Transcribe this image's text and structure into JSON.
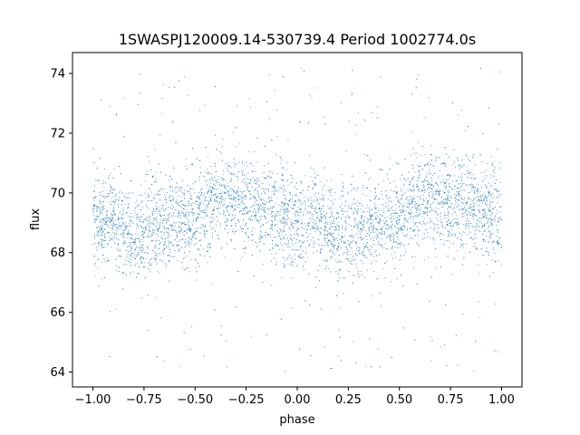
{
  "chart_data": {
    "type": "scatter",
    "title": "1SWASPJ120009.14-530739.4 Period 1002774.0s",
    "xlabel": "phase",
    "ylabel": "flux",
    "xlim": [
      -1.1,
      1.1
    ],
    "ylim": [
      63.5,
      74.7
    ],
    "xticks": [
      -1.0,
      -0.75,
      -0.5,
      -0.25,
      0.0,
      0.25,
      0.5,
      0.75,
      1.0
    ],
    "xtick_labels": [
      "−1.00",
      "−0.75",
      "−0.50",
      "−0.25",
      "0.00",
      "0.25",
      "0.50",
      "0.75",
      "1.00"
    ],
    "yticks": [
      64,
      66,
      68,
      70,
      72,
      74
    ],
    "ytick_labels": [
      "64",
      "66",
      "68",
      "70",
      "72",
      "74"
    ],
    "grid": false,
    "marker_color": "#1f77b4",
    "series": [
      {
        "phase_range": [
          -1.0,
          1.0
        ],
        "mean_flux": 69.0,
        "core_band": [
          67.5,
          70.5
        ],
        "outlier_range": [
          64.0,
          74.2
        ],
        "profile": [
          {
            "x": -1.0,
            "y": 68.9
          },
          {
            "x": -0.9,
            "y": 69.2
          },
          {
            "x": -0.8,
            "y": 68.5
          },
          {
            "x": -0.7,
            "y": 68.9
          },
          {
            "x": -0.6,
            "y": 69.1
          },
          {
            "x": -0.5,
            "y": 69.0
          },
          {
            "x": -0.4,
            "y": 69.9
          },
          {
            "x": -0.3,
            "y": 69.7
          },
          {
            "x": -0.2,
            "y": 69.6
          },
          {
            "x": -0.1,
            "y": 69.4
          },
          {
            "x": 0.0,
            "y": 68.9
          },
          {
            "x": 0.1,
            "y": 69.2
          },
          {
            "x": 0.2,
            "y": 68.5
          },
          {
            "x": 0.3,
            "y": 68.9
          },
          {
            "x": 0.4,
            "y": 69.1
          },
          {
            "x": 0.5,
            "y": 69.0
          },
          {
            "x": 0.6,
            "y": 69.9
          },
          {
            "x": 0.7,
            "y": 69.7
          },
          {
            "x": 0.8,
            "y": 69.6
          },
          {
            "x": 0.9,
            "y": 69.4
          },
          {
            "x": 1.0,
            "y": 68.9
          }
        ]
      }
    ]
  }
}
